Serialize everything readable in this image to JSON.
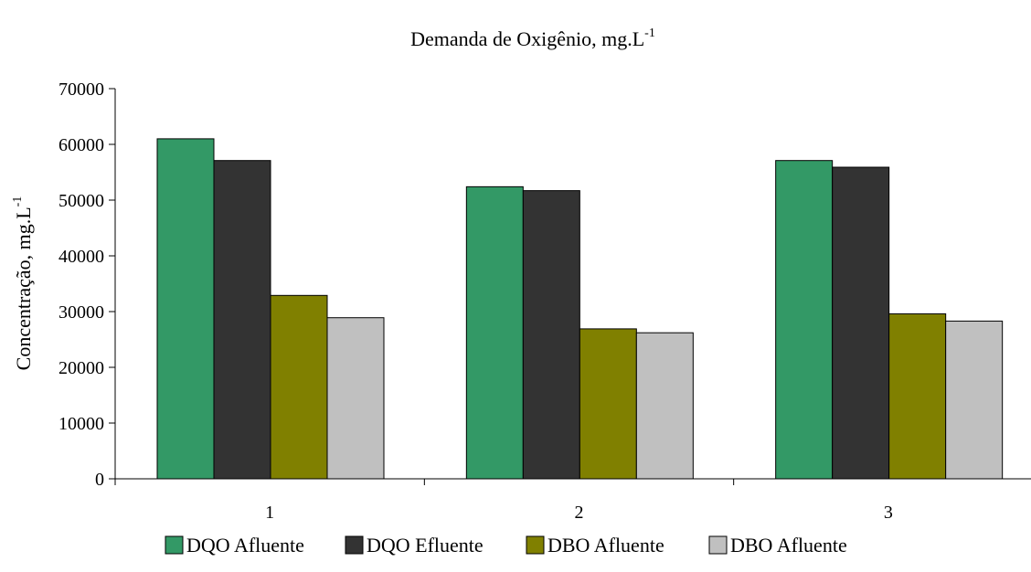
{
  "chart_data": {
    "type": "bar",
    "title": "Demanda de Oxigênio, mg.L",
    "title_superscript": "-1",
    "xlabel": "",
    "ylabel": "Concentração, mg.L",
    "ylabel_superscript": "-1",
    "categories": [
      "1",
      "2",
      "3"
    ],
    "series": [
      {
        "name": "DQO Afluente",
        "values": [
          61000,
          52400,
          57100
        ],
        "color": "#339966"
      },
      {
        "name": "DQO Efluente",
        "values": [
          57100,
          51700,
          55900
        ],
        "color": "#333333"
      },
      {
        "name": "DBO Afluente",
        "values": [
          32900,
          26900,
          29600
        ],
        "color": "#808000"
      },
      {
        "name": "DBO Afluente",
        "values": [
          28900,
          26200,
          28300
        ],
        "color": "#c0c0c0"
      }
    ],
    "ylim": [
      0,
      70000
    ],
    "yticks": [
      "0",
      "10000",
      "20000",
      "30000",
      "40000",
      "50000",
      "60000",
      "70000"
    ],
    "grid": false,
    "legend_position": "bottom"
  }
}
